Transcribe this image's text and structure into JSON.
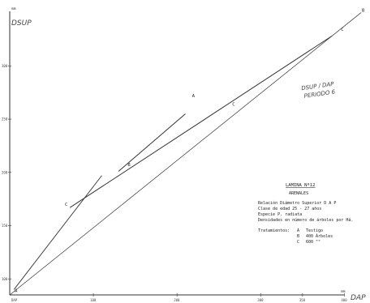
{
  "chart_data": {
    "type": "line",
    "units": {
      "y": "mm",
      "x": "mm"
    },
    "x_ticks": [
      "DAP",
      "100",
      "200",
      "300",
      "350",
      "400"
    ],
    "y_ticks": [
      "100",
      "150",
      "200",
      "250",
      "300"
    ],
    "xlim": [
      0,
      420
    ],
    "ylim": [
      85,
      355
    ],
    "series": [
      {
        "name": "A",
        "x": [
          5,
          110
        ],
        "y": [
          90,
          197
        ]
      },
      {
        "name": "B",
        "x": [
          130,
          210
        ],
        "y": [
          201,
          255
        ]
      },
      {
        "name": "C",
        "x": [
          72,
          385
        ],
        "y": [
          167,
          328
        ]
      },
      {
        "name": "",
        "x": [
          0,
          420
        ],
        "y": [
          85,
          350
        ]
      }
    ],
    "point_labels": [
      {
        "text": "A",
        "x": 5,
        "y": 87
      },
      {
        "text": "B",
        "x": 140,
        "y": 205
      },
      {
        "text": "C",
        "x": 265,
        "y": 262
      },
      {
        "text": "C",
        "x": 65,
        "y": 168
      },
      {
        "text": "A",
        "x": 217,
        "y": 270
      },
      {
        "text": "C",
        "x": 395,
        "y": 332
      },
      {
        "text": "B",
        "x": 420,
        "y": 350
      }
    ]
  },
  "handwriting": {
    "y_title": "DSUP",
    "x_title": "DAP",
    "note_line1": "DSUP / DAP",
    "note_line2": "PERIODO 6"
  },
  "info": {
    "title": "LAMINA Nº12",
    "location": "ARENALES",
    "lines": [
      "Relación Diámetro Superior D A P",
      "Clase de edad 25 - 27 años",
      "Especie P. radiata",
      "Densidades en número de árboles por Há."
    ],
    "treatments_label": "Tratamientos:",
    "treatments": [
      {
        "code": "A",
        "desc": "Testigo"
      },
      {
        "code": "B",
        "desc": "400   Árboles"
      },
      {
        "code": "C",
        "desc": "600     \"\""
      }
    ]
  }
}
